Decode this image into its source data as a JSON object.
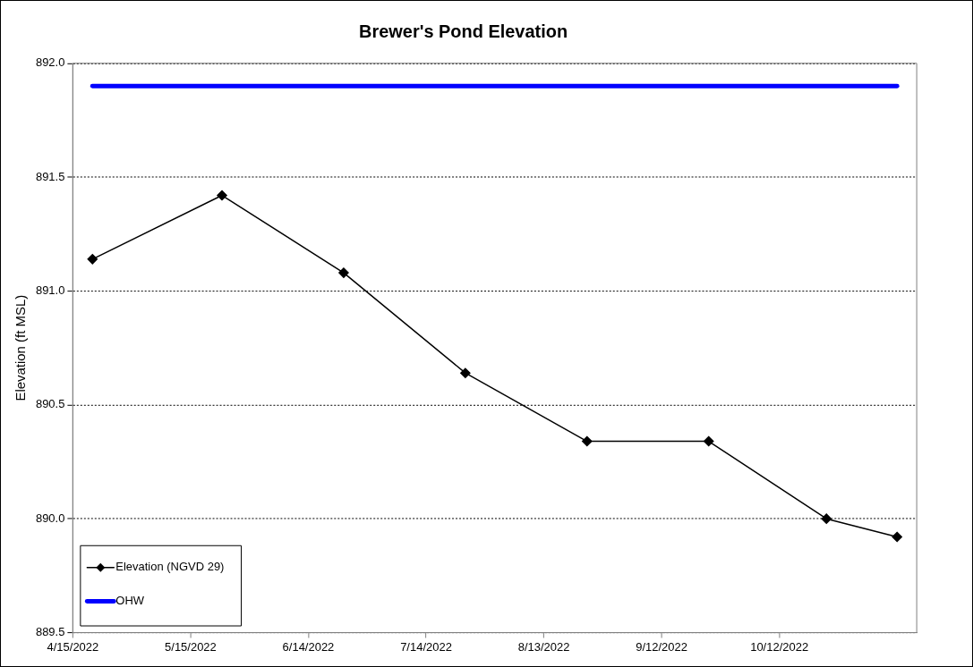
{
  "chart_data": {
    "type": "line",
    "title": "Brewer's Pond Elevation",
    "ylabel": "Elevation (ft MSL)",
    "xlim": [
      "2022-04-15",
      "2022-11-16"
    ],
    "xticks": [
      {
        "value": "2022-04-15",
        "label": "4/15/2022"
      },
      {
        "value": "2022-05-15",
        "label": "5/15/2022"
      },
      {
        "value": "2022-06-14",
        "label": "6/14/2022"
      },
      {
        "value": "2022-07-14",
        "label": "7/14/2022"
      },
      {
        "value": "2022-08-13",
        "label": "8/13/2022"
      },
      {
        "value": "2022-09-12",
        "label": "9/12/2022"
      },
      {
        "value": "2022-10-12",
        "label": "10/12/2022"
      }
    ],
    "ylim": [
      889.5,
      892.0
    ],
    "yticks": [
      {
        "value": 889.5,
        "label": "889.5"
      },
      {
        "value": 890,
        "label": "890.0"
      },
      {
        "value": 890.5,
        "label": "890.5"
      },
      {
        "value": 891,
        "label": "891.0"
      },
      {
        "value": 891.5,
        "label": "891.5"
      },
      {
        "value": 892,
        "label": "892.0"
      }
    ],
    "grid": "y",
    "legend": "bottom left",
    "series": [
      {
        "name": "Elevation (NGVD 29)",
        "color": "#000000",
        "marker": "diamond",
        "x": [
          "2022-04-20",
          "2022-05-23",
          "2022-06-23",
          "2022-07-24",
          "2022-08-24",
          "2022-09-24",
          "2022-10-24",
          "2022-11-11"
        ],
        "values": [
          891.14,
          891.42,
          891.08,
          890.64,
          890.34,
          890.34,
          890.0,
          889.92
        ]
      },
      {
        "name": "OHW",
        "color": "#0000ff",
        "marker": "none",
        "x": [
          "2022-04-20",
          "2022-11-11"
        ],
        "values": [
          891.9,
          891.9
        ]
      }
    ]
  }
}
